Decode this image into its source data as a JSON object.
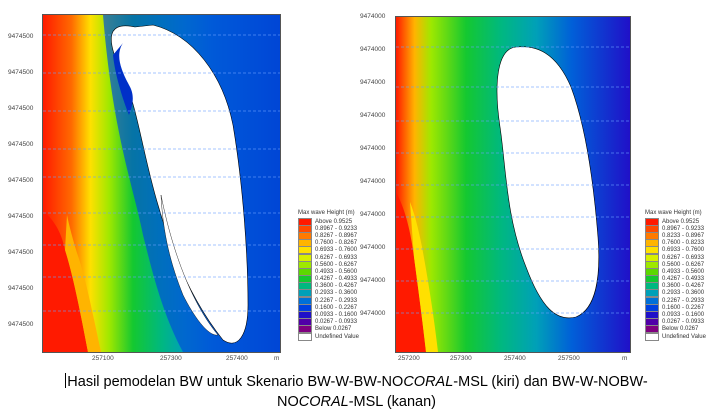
{
  "left_map": {
    "y_ticks": [
      "9474500",
      "9474500",
      "9474500",
      "9474500",
      "9474500",
      "9474500",
      "9474500",
      "9474500",
      "9474500"
    ],
    "x_ticks": [
      "257100",
      "257300",
      "257400"
    ],
    "x_unit": "m",
    "legend": {
      "title": "Max wave Height (m)",
      "entries": [
        {
          "label": "Above  0.9525",
          "color": "#ff1a00"
        },
        {
          "label": "0.8967 - 0.9233",
          "color": "#ff4a00"
        },
        {
          "label": "0.8267 - 0.8967",
          "color": "#ff7a00"
        },
        {
          "label": "0.7600 - 0.8267",
          "color": "#ffb400"
        },
        {
          "label": "0.6933 - 0.7600",
          "color": "#ffe000"
        },
        {
          "label": "0.6267 - 0.6933",
          "color": "#d8f000"
        },
        {
          "label": "0.5600 - 0.6267",
          "color": "#9ee800"
        },
        {
          "label": "0.4933 - 0.5600",
          "color": "#5cd800"
        },
        {
          "label": "0.4267 - 0.4933",
          "color": "#14c830"
        },
        {
          "label": "0.3600 - 0.4267",
          "color": "#00b880"
        },
        {
          "label": "0.2933 - 0.3600",
          "color": "#00a0b8"
        },
        {
          "label": "0.2267 - 0.2933",
          "color": "#0070d8"
        },
        {
          "label": "0.1600 - 0.2267",
          "color": "#0040e0"
        },
        {
          "label": "0.0933 - 0.1600",
          "color": "#2010c8"
        },
        {
          "label": "0.0267 - 0.0933",
          "color": "#5000a8"
        },
        {
          "label": "Below  0.0267",
          "color": "#800080"
        },
        {
          "label": "Undefined Value",
          "color": "#ffffff"
        }
      ]
    }
  },
  "right_map": {
    "y_ticks": [
      "9474000",
      "9474000",
      "9474000",
      "9474000",
      "9474000",
      "9474000",
      "9474000",
      "9474000",
      "9474000",
      "9474000"
    ],
    "x_ticks": [
      "257200",
      "257300",
      "257400",
      "257500"
    ],
    "x_unit": "m",
    "legend": {
      "title": "Max wave Height (m)",
      "entries": [
        {
          "label": "Above  0.9525",
          "color": "#ff1a00"
        },
        {
          "label": "0.8967 - 0.9233",
          "color": "#ff4a00"
        },
        {
          "label": "0.8233 - 0.8967",
          "color": "#ff7a00"
        },
        {
          "label": "0.7600 - 0.8233",
          "color": "#ffb400"
        },
        {
          "label": "0.6933 - 0.7600",
          "color": "#ffe000"
        },
        {
          "label": "0.6267 - 0.6933",
          "color": "#d8f000"
        },
        {
          "label": "0.5600 - 0.6267",
          "color": "#9ee800"
        },
        {
          "label": "0.4933 - 0.5600",
          "color": "#5cd800"
        },
        {
          "label": "0.4267 - 0.4933",
          "color": "#14c830"
        },
        {
          "label": "0.3600 - 0.4267",
          "color": "#00b880"
        },
        {
          "label": "0.2933 - 0.3600",
          "color": "#00a0b8"
        },
        {
          "label": "0.2267 - 0.2933",
          "color": "#0070d8"
        },
        {
          "label": "0.1600 - 0.2267",
          "color": "#0040e0"
        },
        {
          "label": "0.0933 - 0.1600",
          "color": "#2010c8"
        },
        {
          "label": "0.0267 - 0.0933",
          "color": "#5000a8"
        },
        {
          "label": "Below  0.0267",
          "color": "#800080"
        },
        {
          "label": "Undefined Value",
          "color": "#ffffff"
        }
      ]
    }
  },
  "caption": {
    "line1_a": "Hasil pemodelan BW untuk Skenario BW-W-BW-NO",
    "line1_b": "CORAL",
    "line1_c": "-MSL (kiri) dan BW-W-NOBW-",
    "line2_a": "NO",
    "line2_b": "CORAL",
    "line2_c": "-MSL (kanan)"
  }
}
